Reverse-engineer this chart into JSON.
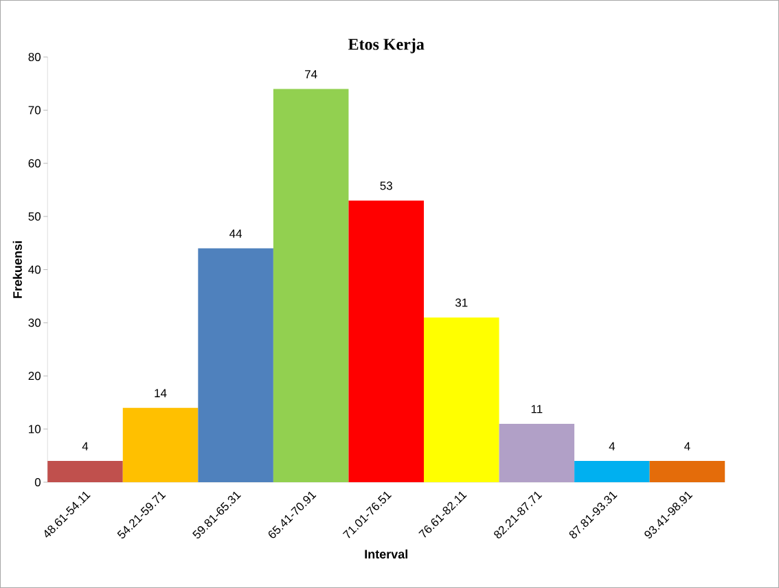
{
  "chart_data": {
    "type": "bar",
    "title": "Etos Kerja",
    "xlabel": "Interval",
    "ylabel": "Frekuensi",
    "categories": [
      "48.61-54.11",
      "54.21-59.71",
      "59.81-65.31",
      "65.41-70.91",
      "71.01-76.51",
      "76.61-82.11",
      "82.21-87.71",
      "87.81-93.31",
      "93.41-98.91"
    ],
    "values": [
      4,
      14,
      44,
      74,
      53,
      31,
      11,
      4,
      4
    ],
    "colors": [
      "#c0504d",
      "#ffc000",
      "#4f81bd",
      "#92d050",
      "#ff0000",
      "#ffff00",
      "#b1a0c7",
      "#00b0f0",
      "#e46c0a"
    ],
    "ylim": [
      0,
      80
    ],
    "yticks": [
      0,
      10,
      20,
      30,
      40,
      50,
      60,
      70,
      80
    ],
    "data_labels": true
  }
}
